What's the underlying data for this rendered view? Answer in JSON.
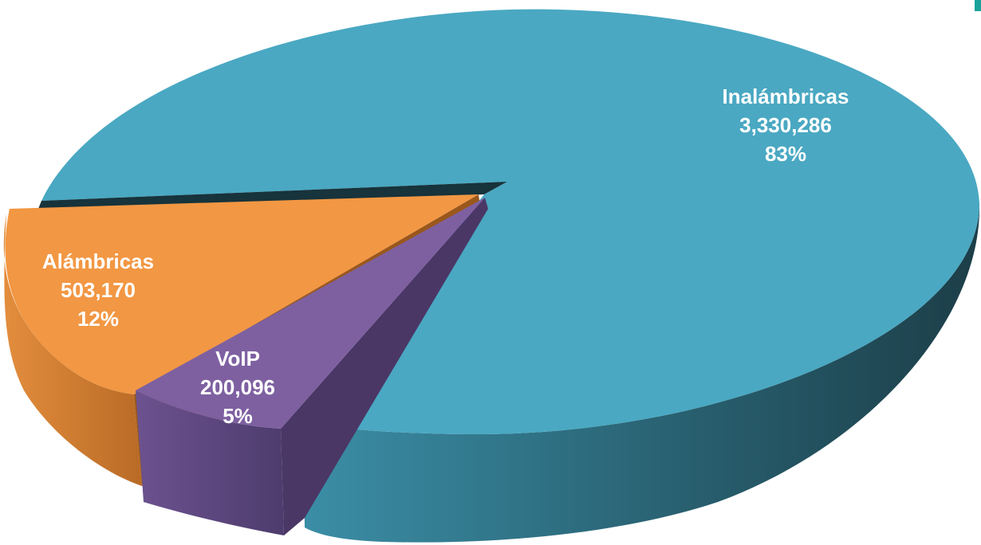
{
  "chart_data": {
    "type": "pie",
    "style": "3d-exploded",
    "title": "",
    "slices": [
      {
        "label": "Inalámbricas",
        "value": 3330286,
        "value_text": "3,330,286",
        "percent_text": "83%",
        "color": "#4aa8c2",
        "side_color": "#2d6e80"
      },
      {
        "label": "Alámbricas",
        "value": 503170,
        "value_text": "503,170",
        "percent_text": "12%",
        "color": "#f29743",
        "side_color": "#c8742c"
      },
      {
        "label": "VoIP",
        "value": 200096,
        "value_text": "200,096",
        "percent_text": "5%",
        "color": "#7e60a1",
        "side_color": "#5e4879"
      }
    ]
  }
}
